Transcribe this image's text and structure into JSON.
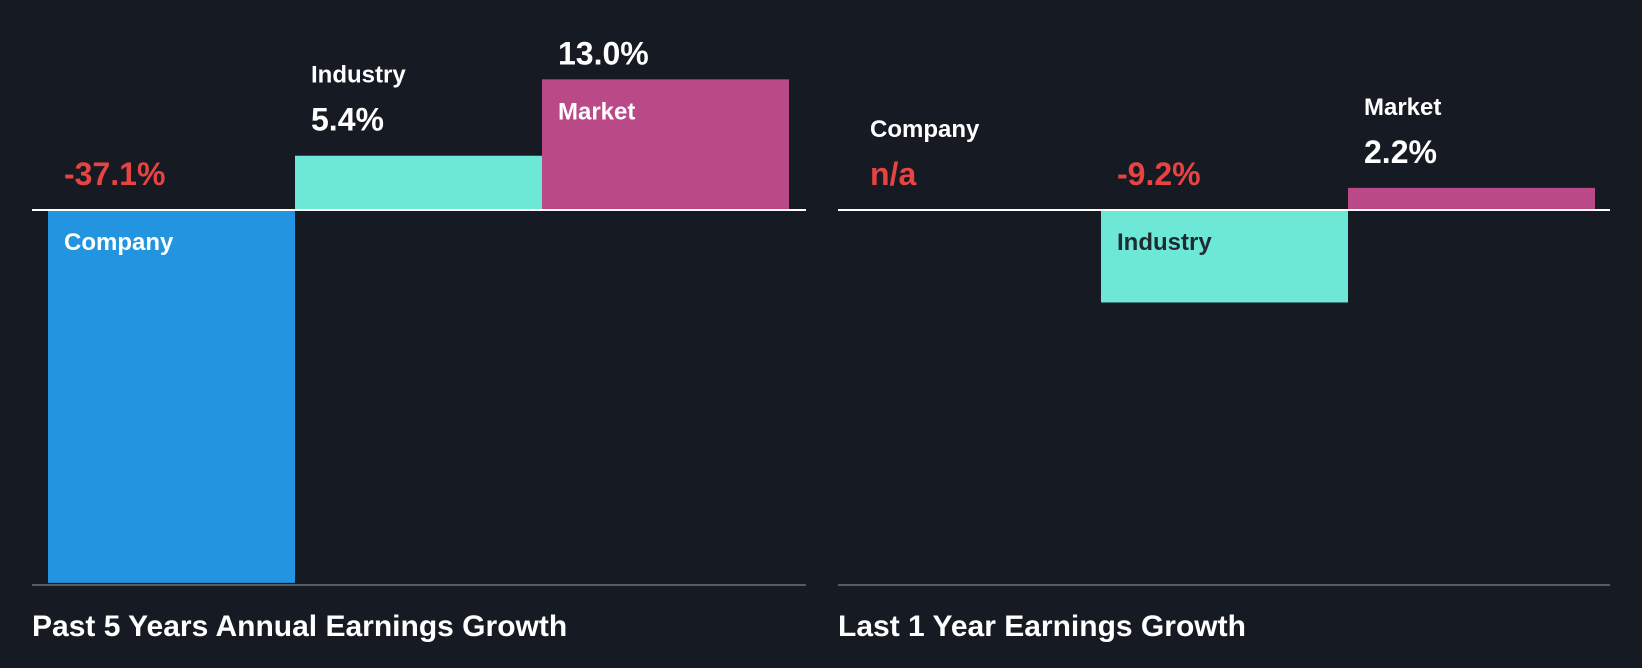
{
  "colors": {
    "background": "#161b23",
    "company": "#2394e0",
    "industry": "#6ee8d6",
    "market": "#ba4a87",
    "negative_text": "#e84343",
    "positive_text": "#ffffff",
    "axis": "#ffffff",
    "baseline": "#6b6f76"
  },
  "chart_data": [
    {
      "type": "bar",
      "title": "Past 5 Years Annual Earnings Growth",
      "categories": [
        "Company",
        "Industry",
        "Market"
      ],
      "values": [
        -37.1,
        5.4,
        13.0
      ],
      "value_labels": [
        "-37.1%",
        "5.4%",
        "13.0%"
      ],
      "unit": "%",
      "grid": false,
      "legend": "none"
    },
    {
      "type": "bar",
      "title": "Last 1 Year Earnings Growth",
      "categories": [
        "Company",
        "Industry",
        "Market"
      ],
      "values": [
        null,
        -9.2,
        2.2
      ],
      "value_labels": [
        "n/a",
        "-9.2%",
        "2.2%"
      ],
      "unit": "%",
      "grid": false,
      "legend": "none"
    }
  ]
}
